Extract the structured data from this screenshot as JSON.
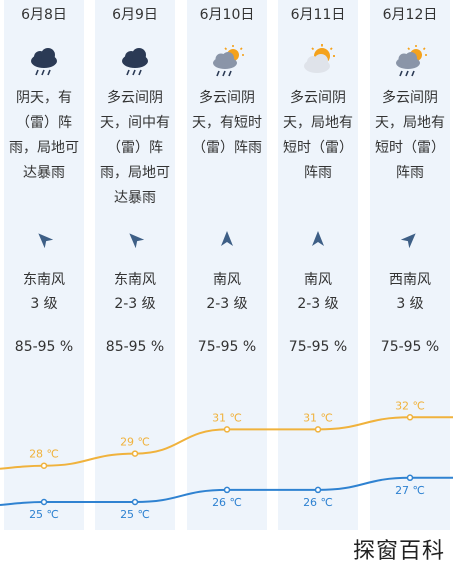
{
  "days": [
    {
      "date": "6月8日",
      "icon": "rain-cloud-icon",
      "desc": [
        "阴天，有",
        "（雷）阵",
        "雨，局地可",
        "达暴雨"
      ],
      "wind_dir": "东南风",
      "wind_level": "3 级",
      "humidity": "85-95 %",
      "wind_angle": 135
    },
    {
      "date": "6月9日",
      "icon": "rain-cloud-icon",
      "desc": [
        "多云间阴",
        "天，间中有",
        "（雷）阵",
        "雨，局地可",
        "达暴雨"
      ],
      "wind_dir": "东南风",
      "wind_level": "2-3 级",
      "humidity": "85-95 %",
      "wind_angle": 135
    },
    {
      "date": "6月10日",
      "icon": "sun-rain-cloud-icon",
      "desc": [
        "多云间阴",
        "天，有短时",
        "（雷）阵雨"
      ],
      "wind_dir": "南风",
      "wind_level": "2-3 级",
      "humidity": "75-95 %",
      "wind_angle": 180
    },
    {
      "date": "6月11日",
      "icon": "sun-cloud-icon",
      "desc": [
        "多云间阴",
        "天，局地有",
        "短时（雷）",
        "阵雨"
      ],
      "wind_dir": "南风",
      "wind_level": "2-3 级",
      "humidity": "75-95 %",
      "wind_angle": 180
    },
    {
      "date": "6月12日",
      "icon": "sun-rain-cloud-icon",
      "desc": [
        "多云间阴",
        "天，局地有",
        "短时（雷）",
        "阵雨"
      ],
      "wind_dir": "西南风",
      "wind_level": "3 级",
      "humidity": "75-95 %",
      "wind_angle": 225
    }
  ],
  "chart_data": {
    "type": "line",
    "x": [
      "6月8日",
      "6月9日",
      "6月10日",
      "6月11日",
      "6月12日"
    ],
    "series": [
      {
        "values": [
          28,
          29,
          31,
          31,
          32
        ],
        "labels": [
          "28 ℃",
          "29 ℃",
          "31 ℃",
          "31 ℃",
          "32 ℃"
        ],
        "color": "#f0b23c"
      },
      {
        "values": [
          25,
          25,
          26,
          26,
          27
        ],
        "labels": [
          "25 ℃",
          "25 ℃",
          "26 ℃",
          "26 ℃",
          "27 ℃"
        ],
        "color": "#2f82d1"
      }
    ]
  },
  "watermark": "探窗百科"
}
